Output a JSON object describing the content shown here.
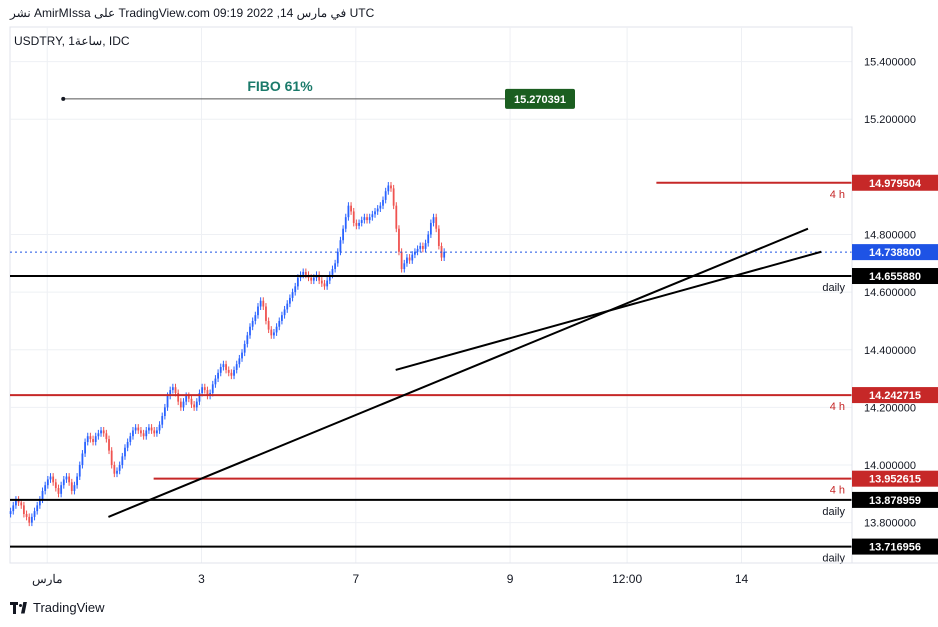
{
  "header": {
    "title": "نشر AmirMIssa على TradingView.com في مارس 14, 2022 09:19 UTC",
    "symbol": "USDTRY, 1ساعة, IDC"
  },
  "footer": {
    "brand": "TradingView"
  },
  "colors": {
    "up": "#2962ff",
    "down": "#ef5350",
    "hline_red": "#c62828",
    "hline_black": "#000000",
    "price_blue": "#1e53e5",
    "fibo_green": "#1b5e20",
    "fibo_text": "#1a7a6a",
    "grid": "#eef0f4"
  },
  "chart_data": {
    "type": "candlestick",
    "title": "",
    "symbol": "USDTRY",
    "timeframe": "1h",
    "ylim": [
      13.66,
      15.52
    ],
    "y_ticks": [
      13.8,
      14.0,
      14.2,
      14.4,
      14.6,
      14.8,
      15.2,
      15.4
    ],
    "y_tick_labels": [
      "13.800000",
      "14.000000",
      "14.200000",
      "14.400000",
      "14.600000",
      "14.800000",
      "15.200000",
      "15.400000"
    ],
    "x_ticks": [
      {
        "label": "مارس",
        "bar": 14
      },
      {
        "label": "3",
        "bar": 72
      },
      {
        "label": "7",
        "bar": 130
      },
      {
        "label": "9",
        "bar": 188
      },
      {
        "label": "12:00",
        "bar": 232
      },
      {
        "label": "14",
        "bar": 275
      }
    ],
    "grid": true,
    "close_series": [
      13.84,
      13.86,
      13.88,
      13.87,
      13.86,
      13.83,
      13.82,
      13.8,
      13.82,
      13.84,
      13.86,
      13.88,
      13.91,
      13.93,
      13.95,
      13.96,
      13.94,
      13.92,
      13.9,
      13.93,
      13.95,
      13.96,
      13.94,
      13.91,
      13.93,
      13.96,
      14.0,
      14.04,
      14.08,
      14.1,
      14.09,
      14.08,
      14.1,
      14.11,
      14.12,
      14.11,
      14.09,
      14.05,
      14.0,
      13.97,
      13.98,
      14.0,
      14.03,
      14.06,
      14.08,
      14.1,
      14.12,
      14.13,
      14.12,
      14.11,
      14.1,
      14.12,
      14.13,
      14.12,
      14.11,
      14.12,
      14.14,
      14.17,
      14.2,
      14.24,
      14.26,
      14.27,
      14.25,
      14.22,
      14.2,
      14.22,
      14.24,
      14.23,
      14.21,
      14.2,
      14.22,
      14.25,
      14.27,
      14.26,
      14.24,
      14.25,
      14.28,
      14.3,
      14.32,
      14.34,
      14.35,
      14.33,
      14.32,
      14.31,
      14.33,
      14.35,
      14.37,
      14.39,
      14.42,
      14.45,
      14.48,
      14.5,
      14.52,
      14.55,
      14.57,
      14.55,
      14.5,
      14.47,
      14.45,
      14.46,
      14.48,
      14.5,
      14.52,
      14.54,
      14.56,
      14.58,
      14.6,
      14.62,
      14.65,
      14.66,
      14.67,
      14.66,
      14.65,
      14.64,
      14.65,
      14.66,
      14.64,
      14.63,
      14.62,
      14.64,
      14.66,
      14.68,
      14.7,
      14.74,
      14.78,
      14.82,
      14.86,
      14.9,
      14.88,
      14.84,
      14.83,
      14.84,
      14.85,
      14.86,
      14.85,
      14.86,
      14.87,
      14.88,
      14.89,
      14.9,
      14.92,
      14.95,
      14.97,
      14.96,
      14.9,
      14.82,
      14.74,
      14.68,
      14.7,
      14.72,
      14.71,
      14.73,
      14.74,
      14.75,
      14.76,
      14.75,
      14.77,
      14.8,
      14.84,
      14.86,
      14.82,
      14.76,
      14.72,
      14.74
    ],
    "last_price": "14.738800",
    "horizontal_lines": [
      {
        "price": 14.979504,
        "label": "14.979504",
        "color": "red",
        "tag": "4 h",
        "start_bar": 243
      },
      {
        "price": 14.65588,
        "label": "14.655880",
        "color": "black",
        "tag": "daily",
        "start_bar": 0
      },
      {
        "price": 14.242715,
        "label": "14.242715",
        "color": "red",
        "tag": "4 h",
        "start_bar": 0
      },
      {
        "price": 13.952615,
        "label": "13.952615",
        "color": "red",
        "tag": "4 h",
        "start_bar": 54
      },
      {
        "price": 13.878959,
        "label": "13.878959",
        "color": "black",
        "tag": "daily",
        "start_bar": 0
      },
      {
        "price": 13.716956,
        "label": "13.716956",
        "color": "black",
        "tag": "daily",
        "start_bar": 0
      }
    ],
    "trendlines": [
      {
        "from": {
          "bar": 37,
          "price": 13.82
        },
        "to": {
          "bar": 300,
          "price": 14.82
        }
      },
      {
        "from": {
          "bar": 145,
          "price": 14.33
        },
        "to": {
          "bar": 305,
          "price": 14.74
        }
      }
    ],
    "fibo": {
      "label": "FIBO 61%",
      "price": 15.270391,
      "price_label": "15.270391",
      "start_bar": 14
    }
  }
}
